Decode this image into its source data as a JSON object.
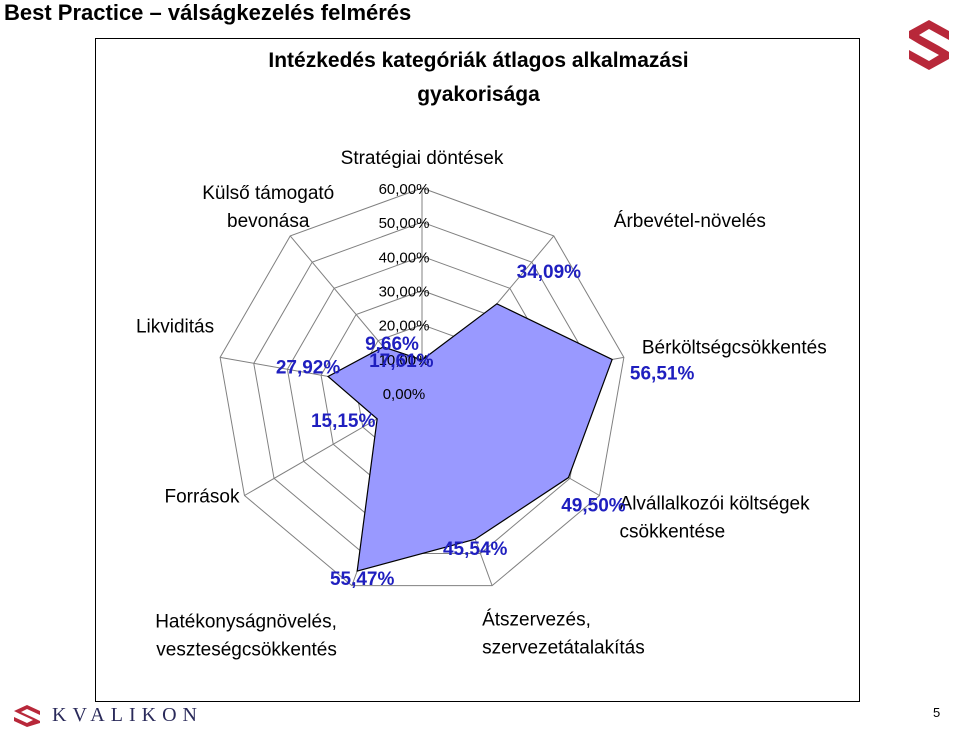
{
  "slide": {
    "title": "Best Practice – válságkezelés felmérés",
    "brand": "KVALIKON",
    "page_number": "5"
  },
  "colors": {
    "brand": "#b8283a",
    "fill": "#9999ff",
    "value_label": "#1f1fbf",
    "grid": "#808080"
  },
  "chart_data": {
    "type": "radar",
    "title_line1": "Intézkedés kategóriák átlagos alkalmazási",
    "title_line2": "gyakorisága",
    "rlim": [
      0,
      60
    ],
    "ticks": [
      {
        "value": 0,
        "label": "0,00%"
      },
      {
        "value": 10,
        "label": "10,00%"
      },
      {
        "value": 20,
        "label": "20,00%"
      },
      {
        "value": 30,
        "label": "30,00%"
      },
      {
        "value": 40,
        "label": "40,00%"
      },
      {
        "value": 50,
        "label": "50,00%"
      },
      {
        "value": 60,
        "label": "60,00%"
      }
    ],
    "categories": [
      {
        "name": [
          "Stratégiai döntések"
        ],
        "value": 9.66,
        "value_label": "9,66%"
      },
      {
        "name": [
          "Árbevétel-növelés"
        ],
        "value": 34.09,
        "value_label": "34,09%"
      },
      {
        "name": [
          "Bérköltségcsökkentés"
        ],
        "value": 56.51,
        "value_label": "56,51%"
      },
      {
        "name": [
          "Alvállalkozói költségek",
          "csökkentése"
        ],
        "value": 49.5,
        "value_label": "49,50%"
      },
      {
        "name": [
          "Átszervezés,",
          "szervezetátalakítás"
        ],
        "value": 45.54,
        "value_label": "45,54%"
      },
      {
        "name": [
          "Hatékonyságnövelés,",
          "veszteségcsökkentés"
        ],
        "value": 55.47,
        "value_label": "55,47%"
      },
      {
        "name": [
          "Források"
        ],
        "value": 15.15,
        "value_label": "15,15%"
      },
      {
        "name": [
          "Likviditás"
        ],
        "value": 27.92,
        "value_label": "27,92%"
      },
      {
        "name": [
          "Külső támogató",
          "bevonása"
        ],
        "value": 17.61,
        "value_label": "17,61%"
      }
    ],
    "grid": true,
    "legend": "none"
  }
}
